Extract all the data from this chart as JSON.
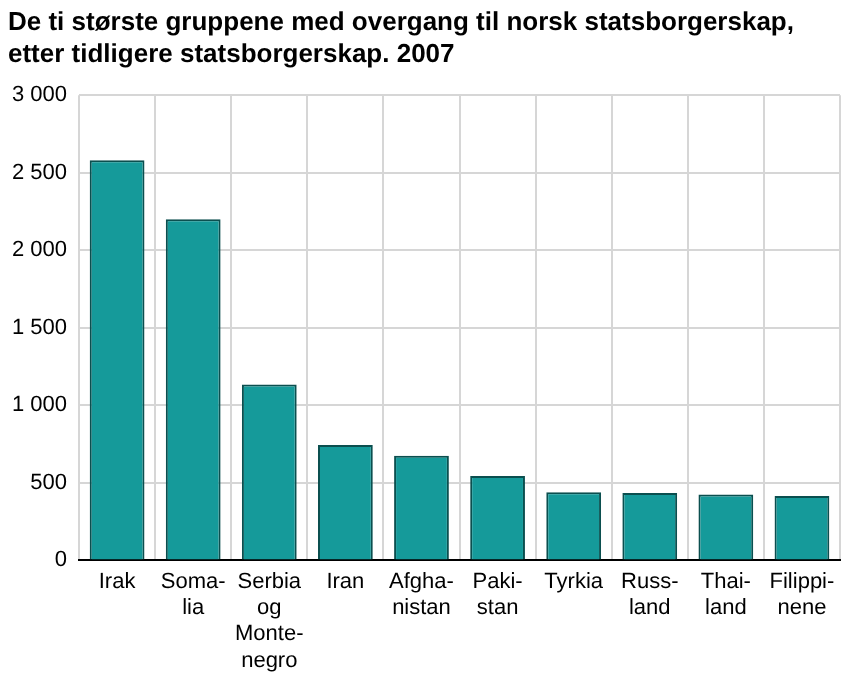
{
  "chart_data": {
    "type": "bar",
    "title": "De ti største gruppene med overgang til norsk statsborgerskap, etter tidligere statsborgerskap. 2007",
    "categories": [
      "Irak",
      "Soma-\nlia",
      "Serbia\nog\nMonte-\nnegro",
      "Iran",
      "Afgha-\nnistan",
      "Paki-\nstan",
      "Tyrkia",
      "Russ-\nland",
      "Thai-\nland",
      "Filippi-\nnene"
    ],
    "values": [
      2580,
      2200,
      1135,
      745,
      675,
      545,
      440,
      435,
      425,
      415
    ],
    "color": "#159a9a",
    "ylim": [
      0,
      3000
    ],
    "yticks": [
      0,
      {
        "value": 500,
        "label": "500"
      },
      {
        "value": 1000,
        "label": "1 000"
      },
      {
        "value": 1500,
        "label": "1 500"
      },
      {
        "value": 2000,
        "label": "2 000"
      },
      {
        "value": 2500,
        "label": "2 500"
      },
      {
        "value": 3000,
        "label": "3 000"
      }
    ],
    "grid": true
  }
}
